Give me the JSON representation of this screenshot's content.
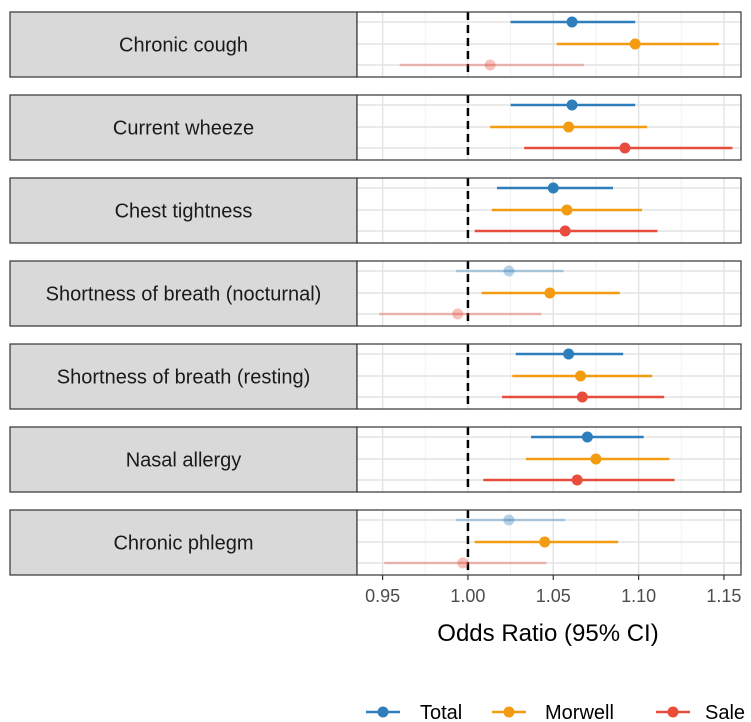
{
  "chart_data": {
    "type": "forest",
    "xlabel": "Odds Ratio (95% CI)",
    "xlim": [
      0.935,
      1.16
    ],
    "xticks": [
      0.95,
      1.0,
      1.05,
      1.1,
      1.15
    ],
    "xtick_labels": [
      "0.95",
      "1.00",
      "1.05",
      "1.10",
      "1.15"
    ],
    "reference_line": 1.0,
    "grid": true,
    "legend_position": "bottom",
    "series": [
      {
        "name": "Total",
        "color": "#2E7EBB"
      },
      {
        "name": "Morwell",
        "color": "#F39C12"
      },
      {
        "name": "Sale",
        "color": "#E74C3C"
      }
    ],
    "outcomes": [
      {
        "label": "Chronic cough",
        "estimates": [
          {
            "series": "Total",
            "or": 1.061,
            "lo": 1.025,
            "hi": 1.098,
            "faded": false
          },
          {
            "series": "Morwell",
            "or": 1.098,
            "lo": 1.052,
            "hi": 1.147,
            "faded": false
          },
          {
            "series": "Sale",
            "or": 1.013,
            "lo": 0.96,
            "hi": 1.068,
            "faded": true
          }
        ]
      },
      {
        "label": "Current wheeze",
        "estimates": [
          {
            "series": "Total",
            "or": 1.061,
            "lo": 1.025,
            "hi": 1.098,
            "faded": false
          },
          {
            "series": "Morwell",
            "or": 1.059,
            "lo": 1.013,
            "hi": 1.105,
            "faded": false
          },
          {
            "series": "Sale",
            "or": 1.092,
            "lo": 1.033,
            "hi": 1.155,
            "faded": false
          }
        ]
      },
      {
        "label": "Chest tightness",
        "estimates": [
          {
            "series": "Total",
            "or": 1.05,
            "lo": 1.017,
            "hi": 1.085,
            "faded": false
          },
          {
            "series": "Morwell",
            "or": 1.058,
            "lo": 1.014,
            "hi": 1.102,
            "faded": false
          },
          {
            "series": "Sale",
            "or": 1.057,
            "lo": 1.004,
            "hi": 1.111,
            "faded": false
          }
        ]
      },
      {
        "label": "Shortness of breath (nocturnal)",
        "estimates": [
          {
            "series": "Total",
            "or": 1.024,
            "lo": 0.993,
            "hi": 1.056,
            "faded": true
          },
          {
            "series": "Morwell",
            "or": 1.048,
            "lo": 1.008,
            "hi": 1.089,
            "faded": false
          },
          {
            "series": "Sale",
            "or": 0.994,
            "lo": 0.948,
            "hi": 1.043,
            "faded": true
          }
        ]
      },
      {
        "label": "Shortness of breath (resting)",
        "estimates": [
          {
            "series": "Total",
            "or": 1.059,
            "lo": 1.028,
            "hi": 1.091,
            "faded": false
          },
          {
            "series": "Morwell",
            "or": 1.066,
            "lo": 1.026,
            "hi": 1.108,
            "faded": false
          },
          {
            "series": "Sale",
            "or": 1.067,
            "lo": 1.02,
            "hi": 1.115,
            "faded": false
          }
        ]
      },
      {
        "label": "Nasal allergy",
        "estimates": [
          {
            "series": "Total",
            "or": 1.07,
            "lo": 1.037,
            "hi": 1.103,
            "faded": false
          },
          {
            "series": "Morwell",
            "or": 1.075,
            "lo": 1.034,
            "hi": 1.118,
            "faded": false
          },
          {
            "series": "Sale",
            "or": 1.064,
            "lo": 1.009,
            "hi": 1.121,
            "faded": false
          }
        ]
      },
      {
        "label": "Chronic phlegm",
        "estimates": [
          {
            "series": "Total",
            "or": 1.024,
            "lo": 0.993,
            "hi": 1.057,
            "faded": true
          },
          {
            "series": "Morwell",
            "or": 1.045,
            "lo": 1.004,
            "hi": 1.088,
            "faded": false
          },
          {
            "series": "Sale",
            "or": 0.997,
            "lo": 0.951,
            "hi": 1.046,
            "faded": true
          }
        ]
      }
    ]
  }
}
